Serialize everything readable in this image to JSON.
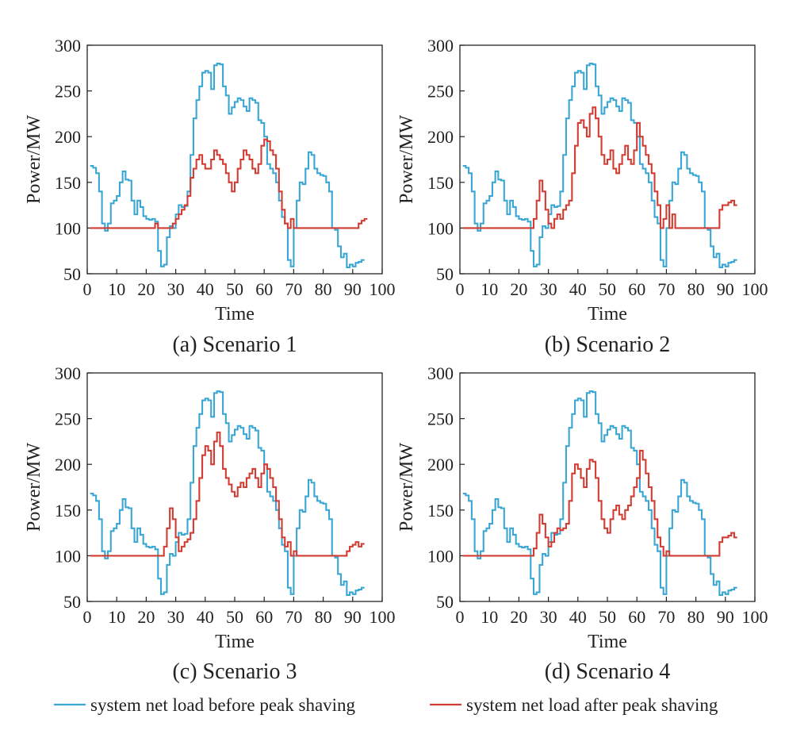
{
  "colors": {
    "before": "#3aa6d3",
    "after": "#d23c32",
    "axis": "#222222"
  },
  "legend": {
    "before_label": "system net load before peak shaving",
    "after_label": "system net load after peak shaving"
  },
  "chart_data": [
    {
      "type": "line",
      "step": true,
      "caption": "(a) Scenario 1",
      "xlabel": "Time",
      "ylabel": "Power/MW",
      "xlim": [
        0,
        100
      ],
      "ylim": [
        50,
        300
      ],
      "xticks": [
        "0",
        "10",
        "20",
        "30",
        "40",
        "50",
        "60",
        "70",
        "80",
        "90",
        "100"
      ],
      "yticks": [
        "50",
        "100",
        "150",
        "200",
        "250",
        "300"
      ],
      "series": [
        {
          "name": "system net load before peak shaving",
          "color": "#3aa6d3",
          "values": [
            168,
            166,
            160,
            140,
            105,
            97,
            105,
            127,
            130,
            135,
            150,
            162,
            153,
            152,
            130,
            115,
            130,
            123,
            113,
            110,
            109,
            110,
            107,
            75,
            58,
            60,
            90,
            102,
            100,
            115,
            125,
            123,
            124,
            140,
            180,
            220,
            240,
            255,
            270,
            272,
            270,
            252,
            278,
            280,
            279,
            255,
            245,
            225,
            232,
            238,
            242,
            240,
            233,
            228,
            242,
            240,
            237,
            218,
            215,
            200,
            170,
            165,
            160,
            150,
            130,
            112,
            105,
            65,
            58,
            100,
            130,
            150,
            148,
            165,
            183,
            180,
            165,
            160,
            158,
            157,
            150,
            140,
            100,
            98,
            80,
            68,
            72,
            57,
            60,
            58,
            62,
            63,
            65
          ]
        },
        {
          "name": "system net load after peak shaving",
          "color": "#d23c32",
          "values": [
            100,
            100,
            100,
            100,
            100,
            100,
            100,
            100,
            100,
            100,
            100,
            100,
            100,
            100,
            100,
            100,
            100,
            100,
            100,
            100,
            100,
            100,
            105,
            100,
            100,
            100,
            100,
            100,
            105,
            110,
            115,
            120,
            125,
            135,
            155,
            165,
            175,
            180,
            170,
            165,
            165,
            175,
            185,
            180,
            175,
            170,
            160,
            150,
            140,
            150,
            165,
            175,
            185,
            180,
            175,
            165,
            160,
            170,
            190,
            197,
            195,
            185,
            180,
            165,
            140,
            120,
            105,
            100,
            110,
            100,
            100,
            100,
            100,
            100,
            100,
            100,
            100,
            100,
            100,
            100,
            100,
            100,
            100,
            100,
            100,
            100,
            100,
            100,
            100,
            100,
            100,
            105,
            108,
            110
          ]
        }
      ]
    },
    {
      "type": "line",
      "step": true,
      "caption": "(b) Scenario 2",
      "xlabel": "Time",
      "ylabel": "Power/MW",
      "xlim": [
        0,
        100
      ],
      "ylim": [
        50,
        300
      ],
      "xticks": [
        "0",
        "10",
        "20",
        "30",
        "40",
        "50",
        "60",
        "70",
        "80",
        "90",
        "100"
      ],
      "yticks": [
        "50",
        "100",
        "150",
        "200",
        "250",
        "300"
      ],
      "series": [
        {
          "name": "system net load before peak shaving",
          "color": "#3aa6d3",
          "values": [
            168,
            166,
            160,
            140,
            105,
            97,
            105,
            127,
            130,
            135,
            150,
            162,
            153,
            152,
            130,
            115,
            130,
            123,
            113,
            110,
            109,
            110,
            107,
            75,
            58,
            60,
            90,
            102,
            100,
            115,
            125,
            123,
            124,
            140,
            180,
            220,
            240,
            255,
            270,
            272,
            270,
            252,
            278,
            280,
            279,
            255,
            245,
            225,
            232,
            238,
            242,
            240,
            233,
            228,
            242,
            240,
            237,
            218,
            215,
            200,
            170,
            165,
            160,
            150,
            130,
            112,
            105,
            65,
            58,
            100,
            130,
            150,
            148,
            165,
            183,
            180,
            165,
            160,
            158,
            157,
            150,
            140,
            100,
            98,
            80,
            68,
            72,
            57,
            60,
            58,
            62,
            63,
            65
          ]
        },
        {
          "name": "system net load after peak shaving",
          "color": "#d23c32",
          "values": [
            100,
            100,
            100,
            100,
            100,
            100,
            100,
            100,
            100,
            100,
            100,
            100,
            100,
            100,
            100,
            100,
            100,
            100,
            100,
            100,
            100,
            100,
            100,
            100,
            110,
            130,
            152,
            140,
            120,
            105,
            100,
            110,
            115,
            110,
            120,
            125,
            130,
            160,
            190,
            215,
            218,
            210,
            200,
            225,
            232,
            220,
            200,
            180,
            170,
            175,
            185,
            165,
            160,
            170,
            180,
            190,
            175,
            170,
            185,
            215,
            200,
            190,
            180,
            170,
            160,
            140,
            125,
            100,
            110,
            125,
            100,
            115,
            100,
            100,
            100,
            100,
            100,
            100,
            100,
            100,
            100,
            100,
            100,
            100,
            100,
            100,
            100,
            120,
            125,
            125,
            128,
            130,
            125
          ]
        }
      ]
    },
    {
      "type": "line",
      "step": true,
      "caption": "(c) Scenario 3",
      "xlabel": "Time",
      "ylabel": "Power/MW",
      "xlim": [
        0,
        100
      ],
      "ylim": [
        50,
        300
      ],
      "xticks": [
        "0",
        "10",
        "20",
        "30",
        "40",
        "50",
        "60",
        "70",
        "80",
        "90",
        "100"
      ],
      "yticks": [
        "50",
        "100",
        "150",
        "200",
        "250",
        "300"
      ],
      "series": [
        {
          "name": "system net load before peak shaving",
          "color": "#3aa6d3",
          "values": [
            168,
            166,
            160,
            140,
            105,
            97,
            105,
            127,
            130,
            135,
            150,
            162,
            153,
            152,
            130,
            115,
            130,
            123,
            113,
            110,
            109,
            110,
            107,
            75,
            58,
            60,
            90,
            102,
            100,
            115,
            125,
            123,
            124,
            140,
            180,
            220,
            240,
            255,
            270,
            272,
            270,
            252,
            278,
            280,
            279,
            255,
            245,
            225,
            232,
            238,
            242,
            240,
            233,
            228,
            242,
            240,
            237,
            218,
            215,
            200,
            170,
            165,
            160,
            150,
            130,
            112,
            105,
            65,
            58,
            100,
            130,
            150,
            148,
            165,
            183,
            180,
            165,
            160,
            158,
            157,
            150,
            140,
            100,
            98,
            80,
            68,
            72,
            57,
            60,
            58,
            62,
            63,
            65
          ]
        },
        {
          "name": "system net load after peak shaving",
          "color": "#d23c32",
          "values": [
            100,
            100,
            100,
            100,
            100,
            100,
            100,
            100,
            100,
            100,
            100,
            100,
            100,
            100,
            100,
            100,
            100,
            100,
            100,
            100,
            100,
            100,
            100,
            100,
            100,
            110,
            130,
            152,
            140,
            120,
            105,
            110,
            115,
            118,
            125,
            140,
            160,
            185,
            210,
            220,
            215,
            200,
            225,
            235,
            220,
            195,
            185,
            178,
            170,
            165,
            175,
            180,
            175,
            185,
            190,
            195,
            185,
            175,
            190,
            200,
            195,
            185,
            175,
            160,
            140,
            120,
            110,
            115,
            100,
            105,
            100,
            100,
            100,
            100,
            100,
            100,
            100,
            100,
            100,
            100,
            100,
            100,
            100,
            100,
            100,
            100,
            100,
            105,
            110,
            112,
            115,
            110,
            113
          ]
        }
      ]
    },
    {
      "type": "line",
      "step": true,
      "caption": "(d) Scenario 4",
      "xlabel": "Time",
      "ylabel": "Power/MW",
      "xlim": [
        0,
        100
      ],
      "ylim": [
        50,
        300
      ],
      "xticks": [
        "0",
        "10",
        "20",
        "30",
        "40",
        "50",
        "60",
        "70",
        "80",
        "90",
        "100"
      ],
      "yticks": [
        "50",
        "100",
        "150",
        "200",
        "250",
        "300"
      ],
      "series": [
        {
          "name": "system net load before peak shaving",
          "color": "#3aa6d3",
          "values": [
            168,
            166,
            160,
            140,
            105,
            97,
            105,
            127,
            130,
            135,
            150,
            162,
            153,
            152,
            130,
            115,
            130,
            123,
            113,
            110,
            109,
            110,
            107,
            75,
            58,
            60,
            90,
            102,
            100,
            115,
            125,
            123,
            124,
            140,
            180,
            220,
            240,
            255,
            270,
            272,
            270,
            252,
            278,
            280,
            279,
            255,
            245,
            225,
            232,
            238,
            242,
            240,
            233,
            228,
            242,
            240,
            237,
            218,
            215,
            200,
            170,
            165,
            160,
            150,
            130,
            112,
            105,
            65,
            58,
            100,
            130,
            150,
            148,
            165,
            183,
            180,
            165,
            160,
            158,
            157,
            150,
            140,
            100,
            98,
            80,
            68,
            72,
            57,
            60,
            58,
            62,
            63,
            65
          ]
        },
        {
          "name": "system net load after peak shaving",
          "color": "#d23c32",
          "values": [
            100,
            100,
            100,
            100,
            100,
            100,
            100,
            100,
            100,
            100,
            100,
            100,
            100,
            100,
            100,
            100,
            100,
            100,
            100,
            100,
            100,
            100,
            100,
            100,
            108,
            125,
            145,
            135,
            120,
            110,
            115,
            125,
            130,
            128,
            130,
            135,
            160,
            190,
            200,
            195,
            185,
            175,
            195,
            205,
            203,
            185,
            160,
            140,
            130,
            125,
            140,
            150,
            155,
            145,
            140,
            150,
            155,
            165,
            175,
            185,
            215,
            205,
            190,
            175,
            160,
            140,
            120,
            110,
            100,
            105,
            100,
            100,
            100,
            100,
            100,
            100,
            100,
            100,
            100,
            100,
            100,
            100,
            100,
            100,
            100,
            100,
            100,
            115,
            120,
            120,
            122,
            125,
            120
          ]
        }
      ]
    }
  ]
}
